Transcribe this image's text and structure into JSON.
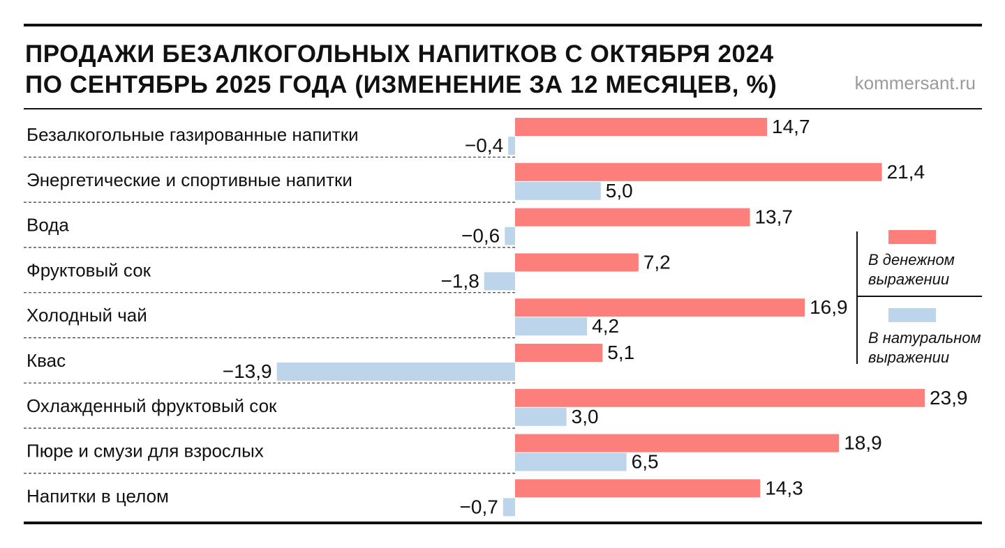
{
  "source": "kommersant.ru",
  "colors": {
    "money": "#fc7f7c",
    "volume": "#bcd5ea",
    "text": "#111111"
  },
  "chart_data": {
    "type": "bar",
    "orientation": "horizontal",
    "title_lines": [
      "ПРОДАЖИ БЕЗАЛКОГОЛЬНЫХ НАПИТКОВ С ОКТЯБРЯ 2024",
      "ПО СЕНТЯБРЬ 2025 ГОДА (ИЗМЕНЕНИЕ ЗА 12 МЕСЯЦЕВ, %)"
    ],
    "categories": [
      "Безалкогольные газированные напитки",
      "Энергетические и спортивные напитки",
      "Вода",
      "Фруктовый сок",
      "Холодный чай",
      "Квас",
      "Охлажденный фруктовый сок",
      "Пюре и смузи для взрослых",
      "Напитки в целом"
    ],
    "series": [
      {
        "name": "В денежном выражении",
        "legend_lines": [
          "В денежном",
          "выражении"
        ],
        "color": "#fc7f7c",
        "values": [
          14.7,
          21.4,
          13.7,
          7.2,
          16.9,
          5.1,
          23.9,
          18.9,
          14.3
        ],
        "labels": [
          "14,7",
          "21,4",
          "13,7",
          "7,2",
          "16,9",
          "5,1",
          "23,9",
          "18,9",
          "14,3"
        ]
      },
      {
        "name": "В натуральном выражении",
        "legend_lines": [
          "В натуральном",
          "выражении"
        ],
        "color": "#bcd5ea",
        "values": [
          -0.4,
          5.0,
          -0.6,
          -1.8,
          4.2,
          -13.9,
          3.0,
          6.5,
          -0.7
        ],
        "labels": [
          "−0,4",
          "5,0",
          "−0,6",
          "−1,8",
          "4,2",
          "−13,9",
          "3,0",
          "6,5",
          "−0,7"
        ]
      }
    ],
    "xlim": [
      -13.9,
      23.9
    ],
    "legend_position": "right"
  }
}
